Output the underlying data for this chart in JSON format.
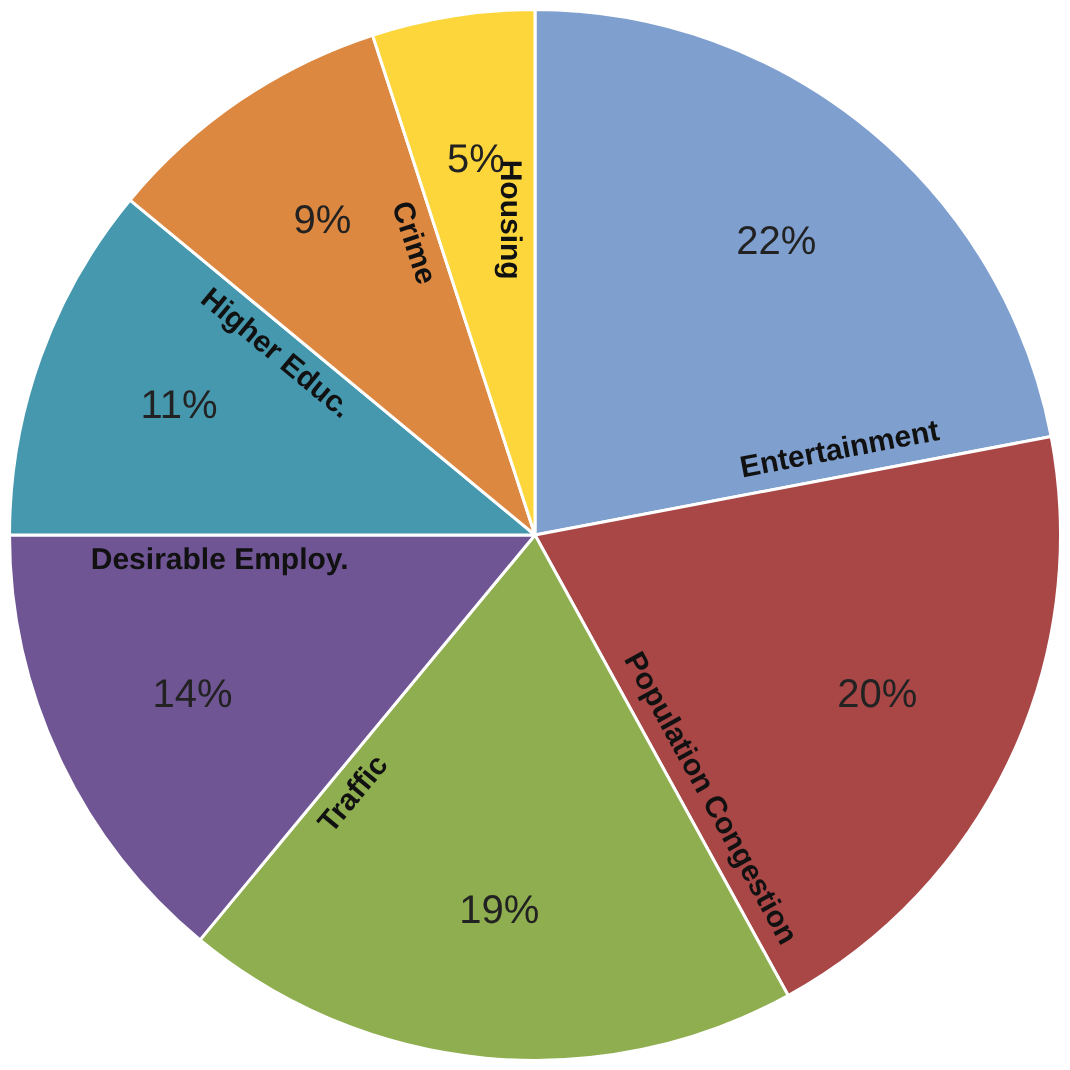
{
  "chart_data": {
    "type": "pie",
    "categories": [
      "Entertainment",
      "Population Congestion",
      "Traffic",
      "Desirable Employ.",
      "Higher Educ.",
      "Crime",
      "Housing"
    ],
    "values": [
      22,
      20,
      19,
      14,
      11,
      9,
      5
    ],
    "value_labels": [
      "22%",
      "20%",
      "19%",
      "14%",
      "11%",
      "9%",
      "5%"
    ],
    "colors": [
      "#7f9fcf",
      "#a94747",
      "#8fae50",
      "#705595",
      "#4698ae",
      "#dc8840",
      "#fdd63c"
    ],
    "legend": false
  }
}
